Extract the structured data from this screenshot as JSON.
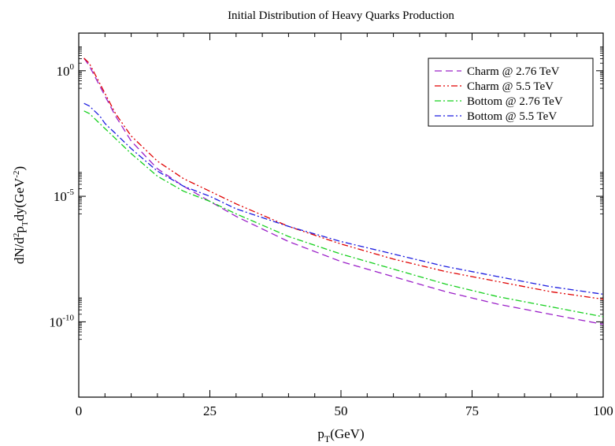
{
  "chart_data": {
    "type": "line",
    "title": "Initial Distribution of Heavy Quarks Production",
    "xlabel": {
      "main": "p",
      "sub": "T",
      "rest": "(GeV)"
    },
    "ylabel": {
      "p1": "dN/d",
      "s1": "2",
      "p2": "p",
      "s2": "T",
      "p3": "dy(GeV",
      "s3": "-2",
      "p4": ")"
    },
    "xlim": [
      0,
      100
    ],
    "ylim_log10": [
      -13,
      1.5
    ],
    "yscale": "log",
    "grid": false,
    "legend_position": "top-right",
    "x_ticks": [
      {
        "value": 0,
        "label": "0"
      },
      {
        "value": 25,
        "label": "25"
      },
      {
        "value": 50,
        "label": "50"
      },
      {
        "value": 75,
        "label": "75"
      },
      {
        "value": 100,
        "label": "100"
      }
    ],
    "y_ticks": [
      {
        "exp": 0,
        "base": "10",
        "sup": "0"
      },
      {
        "exp": -5,
        "base": "10",
        "sup": "-5"
      },
      {
        "exp": -10,
        "base": "10",
        "sup": "-10"
      }
    ],
    "x": [
      1,
      2,
      3,
      4,
      5,
      7,
      10,
      15,
      20,
      25,
      30,
      40,
      50,
      60,
      70,
      80,
      90,
      100
    ],
    "series": [
      {
        "name": "Charm @ 2.76 TeV",
        "color": "#9b20c8",
        "dash": "9,5",
        "log10_values": [
          0.5,
          0.2,
          -0.2,
          -0.6,
          -1.0,
          -1.8,
          -2.8,
          -3.9,
          -4.6,
          -5.2,
          -5.8,
          -6.8,
          -7.6,
          -8.2,
          -8.8,
          -9.3,
          -9.7,
          -10.1
        ]
      },
      {
        "name": "Charm @ 5.5 TeV",
        "color": "#e00000",
        "dash": "8,3,2,3,2,3",
        "log10_values": [
          0.5,
          0.3,
          -0.1,
          -0.5,
          -0.9,
          -1.7,
          -2.6,
          -3.6,
          -4.3,
          -4.8,
          -5.3,
          -6.2,
          -6.9,
          -7.5,
          -8.0,
          -8.4,
          -8.8,
          -9.1
        ]
      },
      {
        "name": "Bottom @ 2.76 TeV",
        "color": "#16d01e",
        "dash": "8,3,2,3",
        "log10_values": [
          -1.6,
          -1.7,
          -1.9,
          -2.1,
          -2.3,
          -2.7,
          -3.3,
          -4.2,
          -4.8,
          -5.2,
          -5.7,
          -6.6,
          -7.3,
          -7.9,
          -8.5,
          -9.0,
          -9.4,
          -9.8
        ]
      },
      {
        "name": "Bottom @ 5.5 TeV",
        "color": "#1d1de0",
        "dash": "8,3,2,3",
        "log10_values": [
          -1.3,
          -1.4,
          -1.6,
          -1.8,
          -2.1,
          -2.5,
          -3.1,
          -4.0,
          -4.6,
          -5.0,
          -5.5,
          -6.2,
          -6.8,
          -7.3,
          -7.8,
          -8.2,
          -8.6,
          -8.9
        ]
      }
    ]
  }
}
